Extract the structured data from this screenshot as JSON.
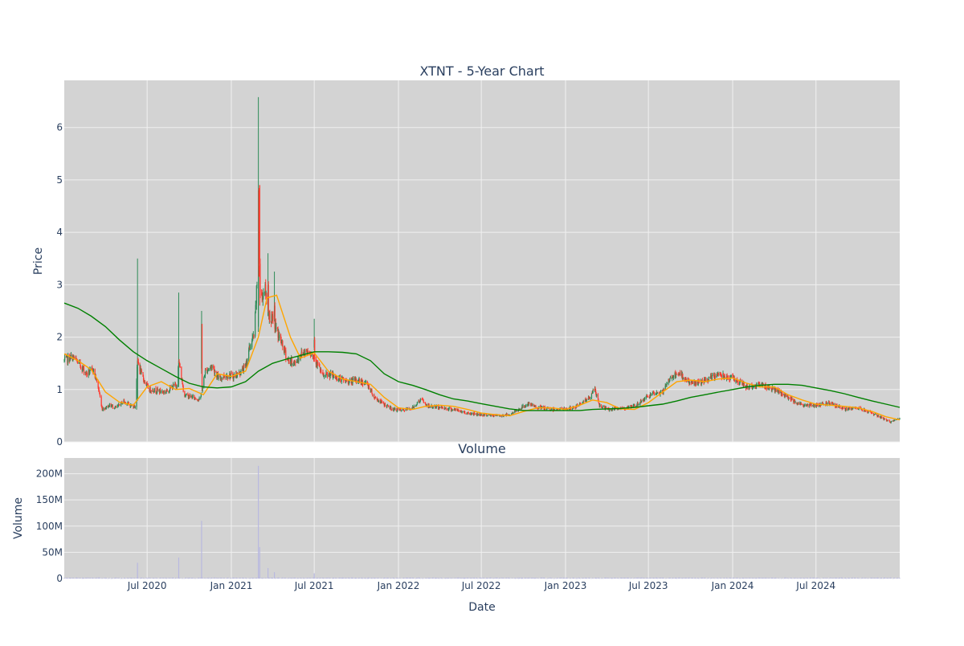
{
  "title": "XTNT - 5-Year Chart",
  "volume_title": "Volume",
  "x_axis_label": "Date",
  "price_axis_label": "Price",
  "volume_axis_label": "Volume",
  "colors": {
    "background": "#d3d3d3",
    "grid": "#f0f0f0",
    "up": "#2e8b57",
    "down": "#ff3b30",
    "ma_short": "#ffa500",
    "ma_long": "#008000",
    "volume": "#b8b8e0",
    "text": "#2a3f5f"
  },
  "chart_data": [
    {
      "type": "candlestick",
      "title": "XTNT - 5-Year Chart",
      "xlabel": "",
      "ylabel": "Price",
      "xlim": [
        "2020-01-02",
        "2024-12-31"
      ],
      "ylim": [
        0,
        6.9
      ],
      "grid": true,
      "x_ticks": [
        {
          "date": "2020-07-01",
          "label": "Jul 2020"
        },
        {
          "date": "2021-01-01",
          "label": "Jan 2021"
        },
        {
          "date": "2021-07-01",
          "label": "Jul 2021"
        },
        {
          "date": "2022-01-01",
          "label": "Jan 2022"
        },
        {
          "date": "2022-07-01",
          "label": "Jul 2022"
        },
        {
          "date": "2023-01-01",
          "label": "Jan 2023"
        },
        {
          "date": "2023-07-01",
          "label": "Jul 2023"
        },
        {
          "date": "2024-01-01",
          "label": "Jan 2024"
        },
        {
          "date": "2024-07-01",
          "label": "Jul 2024"
        }
      ],
      "y_ticks": [
        0,
        1,
        2,
        3,
        4,
        5,
        6
      ],
      "close_path": [
        [
          "2020-01-02",
          1.55
        ],
        [
          "2020-01-20",
          1.62
        ],
        [
          "2020-02-05",
          1.48
        ],
        [
          "2020-02-20",
          1.3
        ],
        [
          "2020-03-05",
          1.38
        ],
        [
          "2020-03-15",
          1.1
        ],
        [
          "2020-03-25",
          0.62
        ],
        [
          "2020-04-10",
          0.7
        ],
        [
          "2020-04-25",
          0.65
        ],
        [
          "2020-05-10",
          0.78
        ],
        [
          "2020-05-25",
          0.7
        ],
        [
          "2020-06-05",
          0.68
        ],
        [
          "2020-06-10",
          1.55
        ],
        [
          "2020-06-20",
          1.25
        ],
        [
          "2020-07-05",
          1.0
        ],
        [
          "2020-07-25",
          0.98
        ],
        [
          "2020-08-10",
          0.95
        ],
        [
          "2020-08-25",
          1.05
        ],
        [
          "2020-09-05",
          1.1
        ],
        [
          "2020-09-08",
          1.55
        ],
        [
          "2020-09-20",
          0.9
        ],
        [
          "2020-10-10",
          0.85
        ],
        [
          "2020-10-25",
          0.8
        ],
        [
          "2020-11-05",
          1.35
        ],
        [
          "2020-11-20",
          1.45
        ],
        [
          "2020-12-05",
          1.2
        ],
        [
          "2020-12-20",
          1.28
        ],
        [
          "2021-01-05",
          1.25
        ],
        [
          "2021-01-20",
          1.32
        ],
        [
          "2021-02-01",
          1.45
        ],
        [
          "2021-02-10",
          1.8
        ],
        [
          "2021-02-20",
          2.05
        ],
        [
          "2021-03-01",
          3.5
        ],
        [
          "2021-03-06",
          2.7
        ],
        [
          "2021-03-15",
          2.95
        ],
        [
          "2021-03-25",
          2.4
        ],
        [
          "2021-04-05",
          2.25
        ],
        [
          "2021-04-20",
          1.9
        ],
        [
          "2021-05-05",
          1.55
        ],
        [
          "2021-05-20",
          1.5
        ],
        [
          "2021-06-05",
          1.7
        ],
        [
          "2021-06-20",
          1.75
        ],
        [
          "2021-07-05",
          1.55
        ],
        [
          "2021-07-20",
          1.25
        ],
        [
          "2021-08-05",
          1.28
        ],
        [
          "2021-08-25",
          1.2
        ],
        [
          "2021-09-15",
          1.15
        ],
        [
          "2021-10-05",
          1.18
        ],
        [
          "2021-10-25",
          1.1
        ],
        [
          "2021-11-10",
          0.85
        ],
        [
          "2021-11-30",
          0.72
        ],
        [
          "2021-12-20",
          0.62
        ],
        [
          "2022-01-10",
          0.6
        ],
        [
          "2022-02-01",
          0.65
        ],
        [
          "2022-02-20",
          0.82
        ],
        [
          "2022-03-05",
          0.68
        ],
        [
          "2022-04-01",
          0.66
        ],
        [
          "2022-05-01",
          0.62
        ],
        [
          "2022-06-01",
          0.55
        ],
        [
          "2022-07-01",
          0.52
        ],
        [
          "2022-08-01",
          0.5
        ],
        [
          "2022-09-01",
          0.52
        ],
        [
          "2022-09-20",
          0.62
        ],
        [
          "2022-10-10",
          0.72
        ],
        [
          "2022-11-01",
          0.66
        ],
        [
          "2022-12-01",
          0.62
        ],
        [
          "2023-01-01",
          0.63
        ],
        [
          "2023-01-20",
          0.65
        ],
        [
          "2023-02-10",
          0.78
        ],
        [
          "2023-02-25",
          0.85
        ],
        [
          "2023-03-05",
          1.05
        ],
        [
          "2023-03-15",
          0.7
        ],
        [
          "2023-04-05",
          0.62
        ],
        [
          "2023-05-01",
          0.64
        ],
        [
          "2023-06-01",
          0.68
        ],
        [
          "2023-07-01",
          0.88
        ],
        [
          "2023-08-01",
          0.95
        ],
        [
          "2023-08-20",
          1.25
        ],
        [
          "2023-09-10",
          1.28
        ],
        [
          "2023-10-01",
          1.12
        ],
        [
          "2023-11-01",
          1.15
        ],
        [
          "2023-12-01",
          1.3
        ],
        [
          "2024-01-01",
          1.22
        ],
        [
          "2024-02-01",
          1.05
        ],
        [
          "2024-03-01",
          1.1
        ],
        [
          "2024-04-01",
          1.0
        ],
        [
          "2024-05-01",
          0.85
        ],
        [
          "2024-06-01",
          0.7
        ],
        [
          "2024-07-01",
          0.7
        ],
        [
          "2024-08-01",
          0.75
        ],
        [
          "2024-09-01",
          0.62
        ],
        [
          "2024-10-01",
          0.65
        ],
        [
          "2024-11-01",
          0.55
        ],
        [
          "2024-12-10",
          0.38
        ],
        [
          "2024-12-31",
          0.45
        ]
      ],
      "spikes": [
        {
          "date": "2020-06-10",
          "open": 0.8,
          "high": 3.5,
          "low": 0.78,
          "close": 1.55
        },
        {
          "date": "2020-09-08",
          "open": 1.1,
          "high": 2.85,
          "low": 1.05,
          "close": 1.55
        },
        {
          "date": "2020-10-28",
          "open": 1.4,
          "high": 2.5,
          "low": 1.3,
          "close": 2.25
        },
        {
          "date": "2021-03-01",
          "open": 2.2,
          "high": 6.58,
          "low": 2.1,
          "close": 4.8
        },
        {
          "date": "2021-03-04",
          "open": 4.9,
          "high": 4.9,
          "low": 2.6,
          "close": 3.4
        },
        {
          "date": "2021-03-22",
          "open": 2.5,
          "high": 3.6,
          "low": 2.4,
          "close": 3.0
        },
        {
          "date": "2021-04-05",
          "open": 2.4,
          "high": 3.25,
          "low": 2.3,
          "close": 2.6
        },
        {
          "date": "2021-07-01",
          "open": 1.8,
          "high": 2.35,
          "low": 1.75,
          "close": 1.95
        },
        {
          "date": "2023-03-05",
          "open": 0.85,
          "high": 1.2,
          "low": 0.8,
          "close": 1.1
        }
      ],
      "series": [
        {
          "name": "",
          "type": "line",
          "points": [
            [
              "2020-01-02",
              1.68
            ],
            [
              "2020-02-01",
              1.55
            ],
            [
              "2020-03-01",
              1.38
            ],
            [
              "2020-04-01",
              0.95
            ],
            [
              "2020-05-01",
              0.76
            ],
            [
              "2020-06-01",
              0.7
            ],
            [
              "2020-07-01",
              1.05
            ],
            [
              "2020-08-01",
              1.15
            ],
            [
              "2020-09-01",
              1.0
            ],
            [
              "2020-10-01",
              1.02
            ],
            [
              "2020-11-01",
              0.9
            ],
            [
              "2020-12-01",
              1.3
            ],
            [
              "2021-01-01",
              1.25
            ],
            [
              "2021-02-01",
              1.35
            ],
            [
              "2021-03-01",
              2.0
            ],
            [
              "2021-03-20",
              2.75
            ],
            [
              "2021-04-10",
              2.8
            ],
            [
              "2021-05-10",
              2.0
            ],
            [
              "2021-06-01",
              1.6
            ],
            [
              "2021-07-01",
              1.7
            ],
            [
              "2021-08-01",
              1.35
            ],
            [
              "2021-09-01",
              1.2
            ],
            [
              "2021-10-01",
              1.15
            ],
            [
              "2021-11-01",
              1.1
            ],
            [
              "2021-12-01",
              0.85
            ],
            [
              "2022-01-01",
              0.65
            ],
            [
              "2022-02-01",
              0.62
            ],
            [
              "2022-03-01",
              0.68
            ],
            [
              "2022-04-01",
              0.7
            ],
            [
              "2022-05-01",
              0.68
            ],
            [
              "2022-06-01",
              0.62
            ],
            [
              "2022-07-01",
              0.55
            ],
            [
              "2022-08-01",
              0.52
            ],
            [
              "2022-09-01",
              0.5
            ],
            [
              "2022-10-01",
              0.58
            ],
            [
              "2022-11-01",
              0.65
            ],
            [
              "2022-12-01",
              0.65
            ],
            [
              "2023-01-01",
              0.62
            ],
            [
              "2023-02-01",
              0.7
            ],
            [
              "2023-03-01",
              0.8
            ],
            [
              "2023-04-01",
              0.75
            ],
            [
              "2023-05-01",
              0.63
            ],
            [
              "2023-06-01",
              0.62
            ],
            [
              "2023-07-01",
              0.75
            ],
            [
              "2023-08-01",
              0.95
            ],
            [
              "2023-09-01",
              1.15
            ],
            [
              "2023-10-01",
              1.18
            ],
            [
              "2023-11-01",
              1.15
            ],
            [
              "2023-12-01",
              1.2
            ],
            [
              "2024-01-01",
              1.22
            ],
            [
              "2024-02-01",
              1.12
            ],
            [
              "2024-03-01",
              1.05
            ],
            [
              "2024-04-01",
              1.05
            ],
            [
              "2024-05-01",
              0.9
            ],
            [
              "2024-06-01",
              0.8
            ],
            [
              "2024-07-01",
              0.72
            ],
            [
              "2024-08-01",
              0.7
            ],
            [
              "2024-09-01",
              0.68
            ],
            [
              "2024-10-01",
              0.65
            ],
            [
              "2024-11-01",
              0.58
            ],
            [
              "2024-12-01",
              0.48
            ],
            [
              "2024-12-31",
              0.42
            ]
          ]
        },
        {
          "name": "",
          "type": "line",
          "points": [
            [
              "2020-01-02",
              2.65
            ],
            [
              "2020-02-01",
              2.55
            ],
            [
              "2020-03-01",
              2.4
            ],
            [
              "2020-04-01",
              2.2
            ],
            [
              "2020-05-01",
              1.95
            ],
            [
              "2020-06-01",
              1.72
            ],
            [
              "2020-07-01",
              1.55
            ],
            [
              "2020-08-01",
              1.4
            ],
            [
              "2020-09-01",
              1.25
            ],
            [
              "2020-10-01",
              1.12
            ],
            [
              "2020-11-01",
              1.05
            ],
            [
              "2020-12-01",
              1.03
            ],
            [
              "2021-01-01",
              1.05
            ],
            [
              "2021-02-01",
              1.15
            ],
            [
              "2021-03-01",
              1.35
            ],
            [
              "2021-04-01",
              1.5
            ],
            [
              "2021-05-01",
              1.58
            ],
            [
              "2021-06-01",
              1.65
            ],
            [
              "2021-07-01",
              1.72
            ],
            [
              "2021-08-01",
              1.72
            ],
            [
              "2021-09-01",
              1.71
            ],
            [
              "2021-10-01",
              1.68
            ],
            [
              "2021-11-01",
              1.55
            ],
            [
              "2021-12-01",
              1.3
            ],
            [
              "2022-01-01",
              1.15
            ],
            [
              "2022-02-01",
              1.08
            ],
            [
              "2022-03-01",
              1.0
            ],
            [
              "2022-04-01",
              0.9
            ],
            [
              "2022-05-01",
              0.82
            ],
            [
              "2022-06-01",
              0.78
            ],
            [
              "2022-07-01",
              0.73
            ],
            [
              "2022-08-01",
              0.68
            ],
            [
              "2022-09-01",
              0.63
            ],
            [
              "2022-10-01",
              0.6
            ],
            [
              "2022-11-01",
              0.6
            ],
            [
              "2022-12-01",
              0.6
            ],
            [
              "2023-01-01",
              0.6
            ],
            [
              "2023-02-01",
              0.6
            ],
            [
              "2023-03-01",
              0.62
            ],
            [
              "2023-04-01",
              0.63
            ],
            [
              "2023-05-01",
              0.64
            ],
            [
              "2023-06-01",
              0.66
            ],
            [
              "2023-07-01",
              0.69
            ],
            [
              "2023-08-01",
              0.72
            ],
            [
              "2023-09-01",
              0.78
            ],
            [
              "2023-10-01",
              0.85
            ],
            [
              "2023-11-01",
              0.9
            ],
            [
              "2023-12-01",
              0.95
            ],
            [
              "2024-01-01",
              1.0
            ],
            [
              "2024-02-01",
              1.05
            ],
            [
              "2024-03-01",
              1.08
            ],
            [
              "2024-04-01",
              1.1
            ],
            [
              "2024-05-01",
              1.1
            ],
            [
              "2024-06-01",
              1.08
            ],
            [
              "2024-07-01",
              1.03
            ],
            [
              "2024-08-01",
              0.98
            ],
            [
              "2024-09-01",
              0.92
            ],
            [
              "2024-10-01",
              0.85
            ],
            [
              "2024-11-01",
              0.78
            ],
            [
              "2024-12-01",
              0.72
            ],
            [
              "2024-12-31",
              0.66
            ]
          ]
        }
      ]
    },
    {
      "type": "bar",
      "title": "Volume",
      "xlabel": "Date",
      "ylabel": "Volume",
      "xlim": [
        "2020-01-02",
        "2024-12-31"
      ],
      "ylim": [
        0,
        230000000
      ],
      "grid": true,
      "y_ticks": [
        {
          "value": 0,
          "label": "0"
        },
        {
          "value": 50000000,
          "label": "50M"
        },
        {
          "value": 100000000,
          "label": "100M"
        },
        {
          "value": 150000000,
          "label": "150M"
        },
        {
          "value": 200000000,
          "label": "200M"
        }
      ],
      "spikes": [
        {
          "date": "2020-06-10",
          "value": 30000000
        },
        {
          "date": "2020-09-08",
          "value": 40000000
        },
        {
          "date": "2020-10-28",
          "value": 110000000
        },
        {
          "date": "2021-03-01",
          "value": 215000000
        },
        {
          "date": "2021-03-04",
          "value": 60000000
        },
        {
          "date": "2021-03-22",
          "value": 20000000
        },
        {
          "date": "2021-04-05",
          "value": 12000000
        },
        {
          "date": "2021-07-01",
          "value": 10000000
        }
      ]
    }
  ]
}
